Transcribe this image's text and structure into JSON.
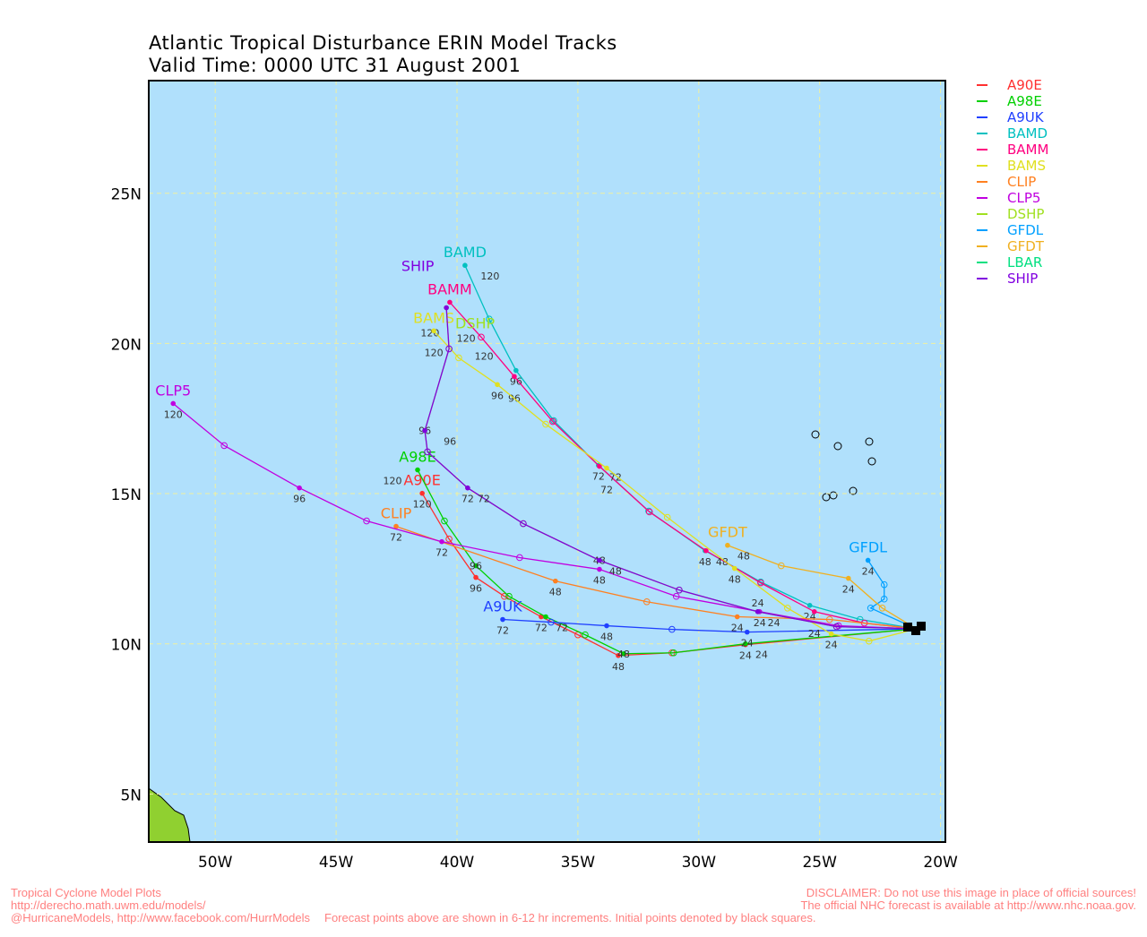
{
  "title": "Atlantic Tropical Disturbance ERIN Model Tracks",
  "subtitle": "Valid Time: 0000 UTC 31 August 2001",
  "chart_data": {
    "type": "map-tracks",
    "lon_range_w": [
      52.75,
      19.8
    ],
    "lat_range_n": [
      3.4,
      28.75
    ],
    "lon_ticks": [
      50,
      45,
      40,
      35,
      30,
      25,
      20
    ],
    "lat_ticks": [
      5,
      10,
      15,
      20,
      25
    ],
    "lon_tick_labels": [
      "50W",
      "45W",
      "40W",
      "35W",
      "30W",
      "25W",
      "20W"
    ],
    "lat_tick_labels": [
      "5N",
      "10N",
      "15N",
      "20N",
      "25N"
    ],
    "grid": true,
    "ocean_color": "#b0e0fc",
    "land_color": "#90d030",
    "legend_placement": "right",
    "initial_point": [
      21.0,
      10.5
    ],
    "models": [
      {
        "name": "A90E",
        "color": "#ff3030",
        "points": [
          [
            28.07,
            9.97,
            24
          ],
          [
            31.11,
            9.7,
            null
          ],
          [
            33.33,
            9.61,
            48
          ],
          [
            35.0,
            10.3,
            null
          ],
          [
            36.52,
            10.9,
            72
          ],
          [
            38.04,
            11.58,
            null
          ],
          [
            39.22,
            12.21,
            96
          ],
          [
            40.33,
            13.49,
            null
          ],
          [
            41.44,
            15.01,
            120
          ]
        ]
      },
      {
        "name": "A98E",
        "color": "#00d000",
        "points": [
          [
            28.07,
            10.0,
            24
          ],
          [
            31.04,
            9.7,
            null
          ],
          [
            33.11,
            9.67,
            48
          ],
          [
            34.7,
            10.3,
            null
          ],
          [
            36.33,
            10.9,
            72
          ],
          [
            37.85,
            11.58,
            null
          ],
          [
            39.22,
            12.6,
            96
          ],
          [
            40.52,
            14.09,
            null
          ],
          [
            41.63,
            15.79,
            120
          ]
        ]
      },
      {
        "name": "A9UK",
        "color": "#2040ff",
        "points": [
          [
            28.0,
            10.39,
            24
          ],
          [
            31.11,
            10.48,
            null
          ],
          [
            33.81,
            10.6,
            48
          ],
          [
            36.11,
            10.72,
            null
          ],
          [
            38.11,
            10.81,
            72
          ]
        ]
      },
      {
        "name": "BAMD",
        "color": "#00c0c0",
        "points": [
          [
            23.33,
            10.81,
            null
          ],
          [
            25.41,
            11.28,
            24
          ],
          [
            27.44,
            12.06,
            null
          ],
          [
            29.74,
            13.1,
            48
          ],
          [
            32.07,
            14.42,
            null
          ],
          [
            34.15,
            15.94,
            72
          ],
          [
            36.0,
            17.43,
            null
          ],
          [
            37.56,
            19.1,
            96
          ],
          [
            38.67,
            20.81,
            null
          ],
          [
            39.67,
            22.6,
            120
          ]
        ]
      },
      {
        "name": "BAMM",
        "color": "#ff0080",
        "points": [
          [
            23.15,
            10.69,
            null
          ],
          [
            25.22,
            11.07,
            24
          ],
          [
            27.44,
            12.03,
            null
          ],
          [
            29.7,
            13.1,
            48
          ],
          [
            32.04,
            14.39,
            null
          ],
          [
            34.11,
            15.91,
            72
          ],
          [
            36.04,
            17.4,
            null
          ],
          [
            37.63,
            18.9,
            96
          ],
          [
            39.0,
            20.21,
            null
          ],
          [
            40.3,
            21.37,
            120
          ]
        ]
      },
      {
        "name": "BAMS",
        "color": "#e0e020",
        "points": [
          [
            22.96,
            10.09,
            null
          ],
          [
            24.52,
            10.33,
            24
          ],
          [
            26.33,
            11.19,
            null
          ],
          [
            28.52,
            12.51,
            48
          ],
          [
            31.3,
            14.21,
            null
          ],
          [
            33.81,
            15.85,
            72
          ],
          [
            36.33,
            17.31,
            null
          ],
          [
            38.33,
            18.63,
            96
          ],
          [
            39.93,
            19.52,
            null
          ],
          [
            40.96,
            20.42,
            120
          ]
        ]
      },
      {
        "name": "CLIP",
        "color": "#ff8020",
        "points": [
          [
            24.59,
            10.81,
            null
          ],
          [
            28.41,
            10.9,
            24
          ],
          [
            32.15,
            11.4,
            null
          ],
          [
            35.93,
            12.09,
            48
          ],
          [
            42.52,
            13.91,
            72
          ]
        ]
      },
      {
        "name": "CLP5",
        "color": "#c000e0",
        "points": [
          [
            24.22,
            10.6,
            null
          ],
          [
            27.48,
            11.07,
            24
          ],
          [
            30.93,
            11.58,
            null
          ],
          [
            34.11,
            12.48,
            48
          ],
          [
            37.41,
            12.87,
            null
          ],
          [
            40.63,
            13.4,
            72
          ],
          [
            43.74,
            14.09,
            null
          ],
          [
            46.52,
            15.19,
            96
          ],
          [
            49.63,
            16.6,
            null
          ],
          [
            51.74,
            18.0,
            120
          ]
        ]
      },
      {
        "name": "DSHP",
        "color": "#a0e020",
        "points": [
          [
            24.3,
            10.57,
            null
          ],
          [
            27.56,
            11.07,
            24
          ],
          [
            30.81,
            11.79,
            null
          ],
          [
            34.11,
            12.78,
            48
          ],
          [
            37.26,
            14.0,
            null
          ],
          [
            39.56,
            15.19,
            72
          ],
          [
            41.22,
            16.39,
            null
          ],
          [
            41.33,
            17.1,
            96
          ],
          [
            40.33,
            19.82,
            null
          ],
          [
            40.44,
            21.19,
            120
          ]
        ]
      },
      {
        "name": "GFDL",
        "color": "#00a0ff",
        "points": [
          [
            22.89,
            11.19,
            null
          ],
          [
            22.33,
            11.49,
            null
          ],
          [
            22.33,
            11.97,
            null
          ],
          [
            23.0,
            12.78,
            24
          ]
        ]
      },
      {
        "name": "GFDT",
        "color": "#f0b020",
        "points": [
          [
            22.41,
            11.19,
            null
          ],
          [
            23.81,
            12.18,
            24
          ],
          [
            26.59,
            12.6,
            null
          ],
          [
            28.81,
            13.28,
            48
          ]
        ]
      },
      {
        "name": "LBAR",
        "color": "#00e080",
        "points": []
      },
      {
        "name": "SHIP",
        "color": "#8000e0",
        "points": [
          [
            24.3,
            10.57,
            null
          ],
          [
            27.56,
            11.07,
            24
          ],
          [
            30.81,
            11.79,
            null
          ],
          [
            34.11,
            12.78,
            48
          ],
          [
            37.26,
            14.0,
            null
          ],
          [
            39.56,
            15.19,
            72
          ],
          [
            41.22,
            16.39,
            null
          ],
          [
            41.33,
            17.1,
            96
          ],
          [
            40.33,
            19.82,
            null
          ],
          [
            40.44,
            21.19,
            120
          ]
        ]
      }
    ]
  },
  "footer": {
    "left": [
      "Tropical Cyclone Model Plots",
      "http://derecho.math.uwm.edu/models/",
      "@HurricaneModels, http://www.facebook.com/HurrModels"
    ],
    "right": [
      "DISCLAIMER: Do not use this image in place of official sources!",
      "The official NHC forecast is available at http://www.nhc.noaa.gov.",
      "Forecast points above are shown in 6-12 hr increments. Initial points denoted by black squares."
    ]
  }
}
